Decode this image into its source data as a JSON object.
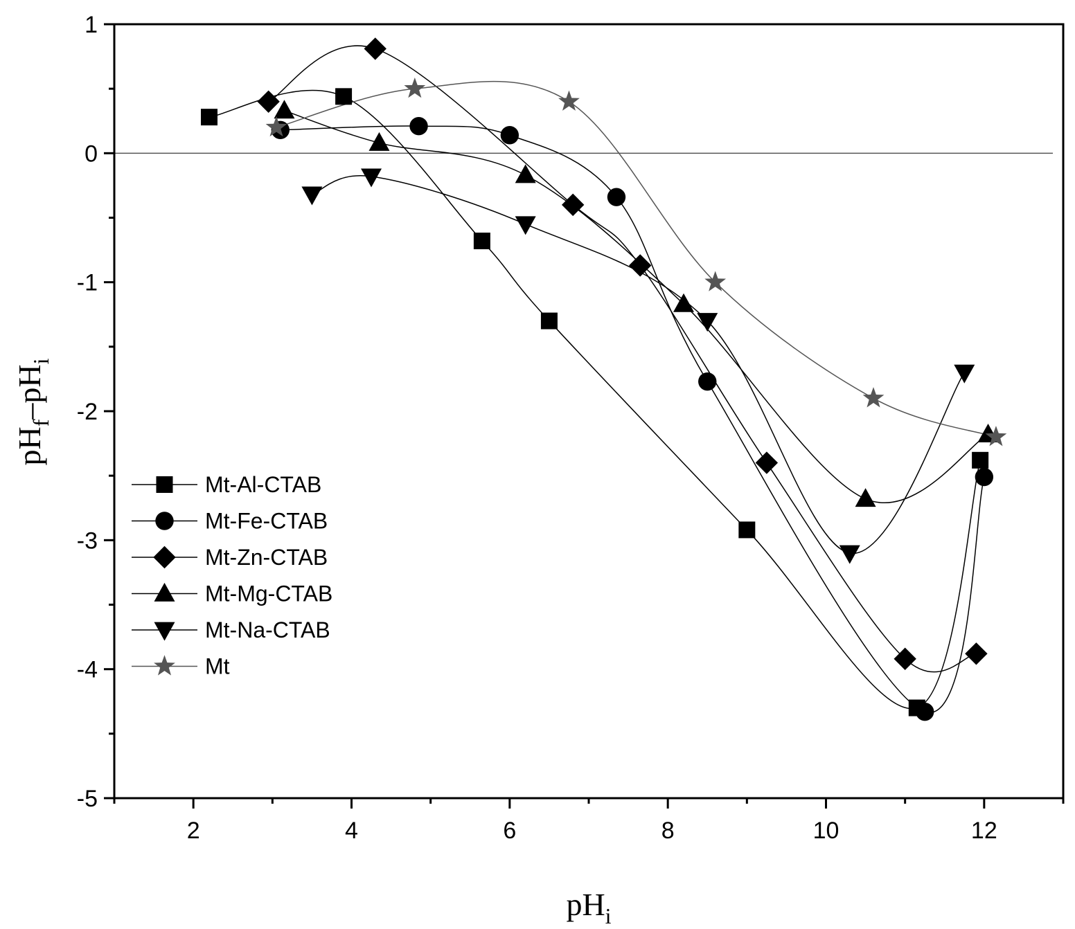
{
  "chart_data": {
    "type": "line",
    "title": "",
    "xlabel": {
      "base": "pH",
      "sub": "i"
    },
    "ylabel": {
      "base1": "pH",
      "sub1": "f",
      "sep": "–",
      "base2": "pH",
      "sub2": "i"
    },
    "xlim": [
      1,
      13
    ],
    "ylim": [
      -5,
      1
    ],
    "xticks": [
      2,
      4,
      6,
      8,
      10,
      12
    ],
    "yticks": [
      1,
      0,
      -1,
      -2,
      -3,
      -4,
      -5
    ],
    "reference_line_y": 0,
    "legend_position": "center-left",
    "series": [
      {
        "name": "Mt-Al-CTAB",
        "marker": "square",
        "color": "#000000",
        "points": [
          [
            2.2,
            0.28
          ],
          [
            3.9,
            0.44
          ],
          [
            5.65,
            -0.68
          ],
          [
            6.5,
            -1.3
          ],
          [
            9.0,
            -2.92
          ],
          [
            11.15,
            -4.3
          ],
          [
            11.95,
            -2.38
          ]
        ]
      },
      {
        "name": "Mt-Fe-CTAB",
        "marker": "circle",
        "color": "#000000",
        "points": [
          [
            3.1,
            0.18
          ],
          [
            4.85,
            0.21
          ],
          [
            6.0,
            0.14
          ],
          [
            7.35,
            -0.34
          ],
          [
            8.5,
            -1.77
          ],
          [
            11.25,
            -4.33
          ],
          [
            12.0,
            -2.51
          ]
        ]
      },
      {
        "name": "Mt-Zn-CTAB",
        "marker": "diamond",
        "color": "#000000",
        "points": [
          [
            2.95,
            0.4
          ],
          [
            4.3,
            0.81
          ],
          [
            6.8,
            -0.4
          ],
          [
            7.65,
            -0.87
          ],
          [
            9.25,
            -2.4
          ],
          [
            11.0,
            -3.92
          ],
          [
            11.9,
            -3.88
          ]
        ]
      },
      {
        "name": "Mt-Mg-CTAB",
        "marker": "triangle-up",
        "color": "#000000",
        "points": [
          [
            3.15,
            0.33
          ],
          [
            4.35,
            0.08
          ],
          [
            6.2,
            -0.17
          ],
          [
            8.2,
            -1.17
          ],
          [
            10.5,
            -2.68
          ],
          [
            12.05,
            -2.18
          ]
        ]
      },
      {
        "name": "Mt-Na-CTAB",
        "marker": "triangle-down",
        "color": "#000000",
        "points": [
          [
            3.5,
            -0.32
          ],
          [
            4.25,
            -0.18
          ],
          [
            6.2,
            -0.55
          ],
          [
            8.5,
            -1.3
          ],
          [
            10.3,
            -3.1
          ],
          [
            11.75,
            -1.7
          ]
        ]
      },
      {
        "name": "Mt",
        "marker": "star",
        "color": "#555555",
        "points": [
          [
            3.05,
            0.2
          ],
          [
            4.8,
            0.5
          ],
          [
            6.75,
            0.4
          ],
          [
            8.6,
            -1.0
          ],
          [
            10.6,
            -1.9
          ],
          [
            12.15,
            -2.2
          ]
        ]
      }
    ]
  }
}
